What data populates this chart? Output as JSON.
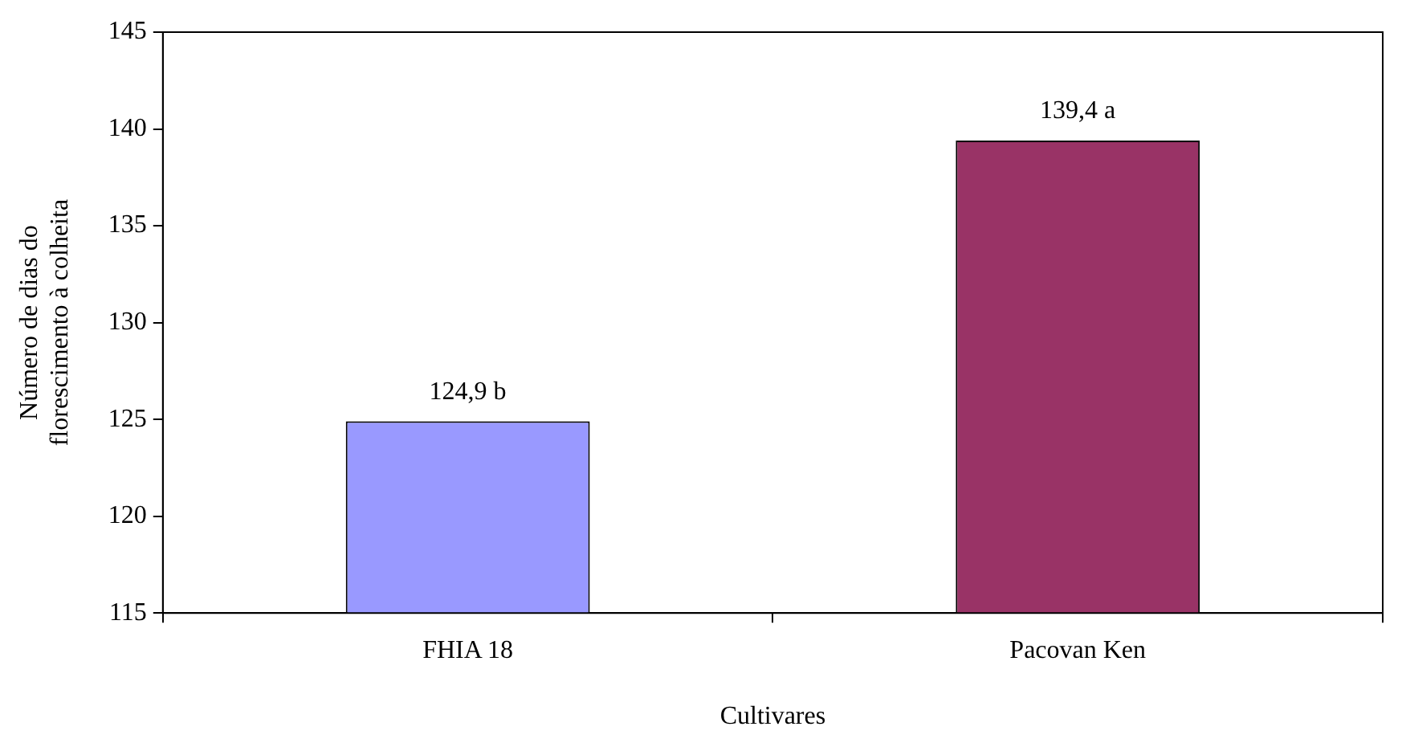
{
  "chart_data": {
    "type": "bar",
    "xlabel": "Cultivares",
    "ylabel": "Número de dias do\nflorescimento à colheita",
    "categories": [
      "FHIA 18",
      "Pacovan Ken"
    ],
    "values": [
      124.9,
      139.4
    ],
    "colors": [
      "#9999ff",
      "#993366"
    ],
    "value_labels": [
      "124,9 b",
      "139,4 a"
    ],
    "ylim": [
      115,
      145
    ],
    "yticks": [
      115,
      120,
      125,
      130,
      135,
      140,
      145
    ],
    "grid": false,
    "legend": false
  }
}
